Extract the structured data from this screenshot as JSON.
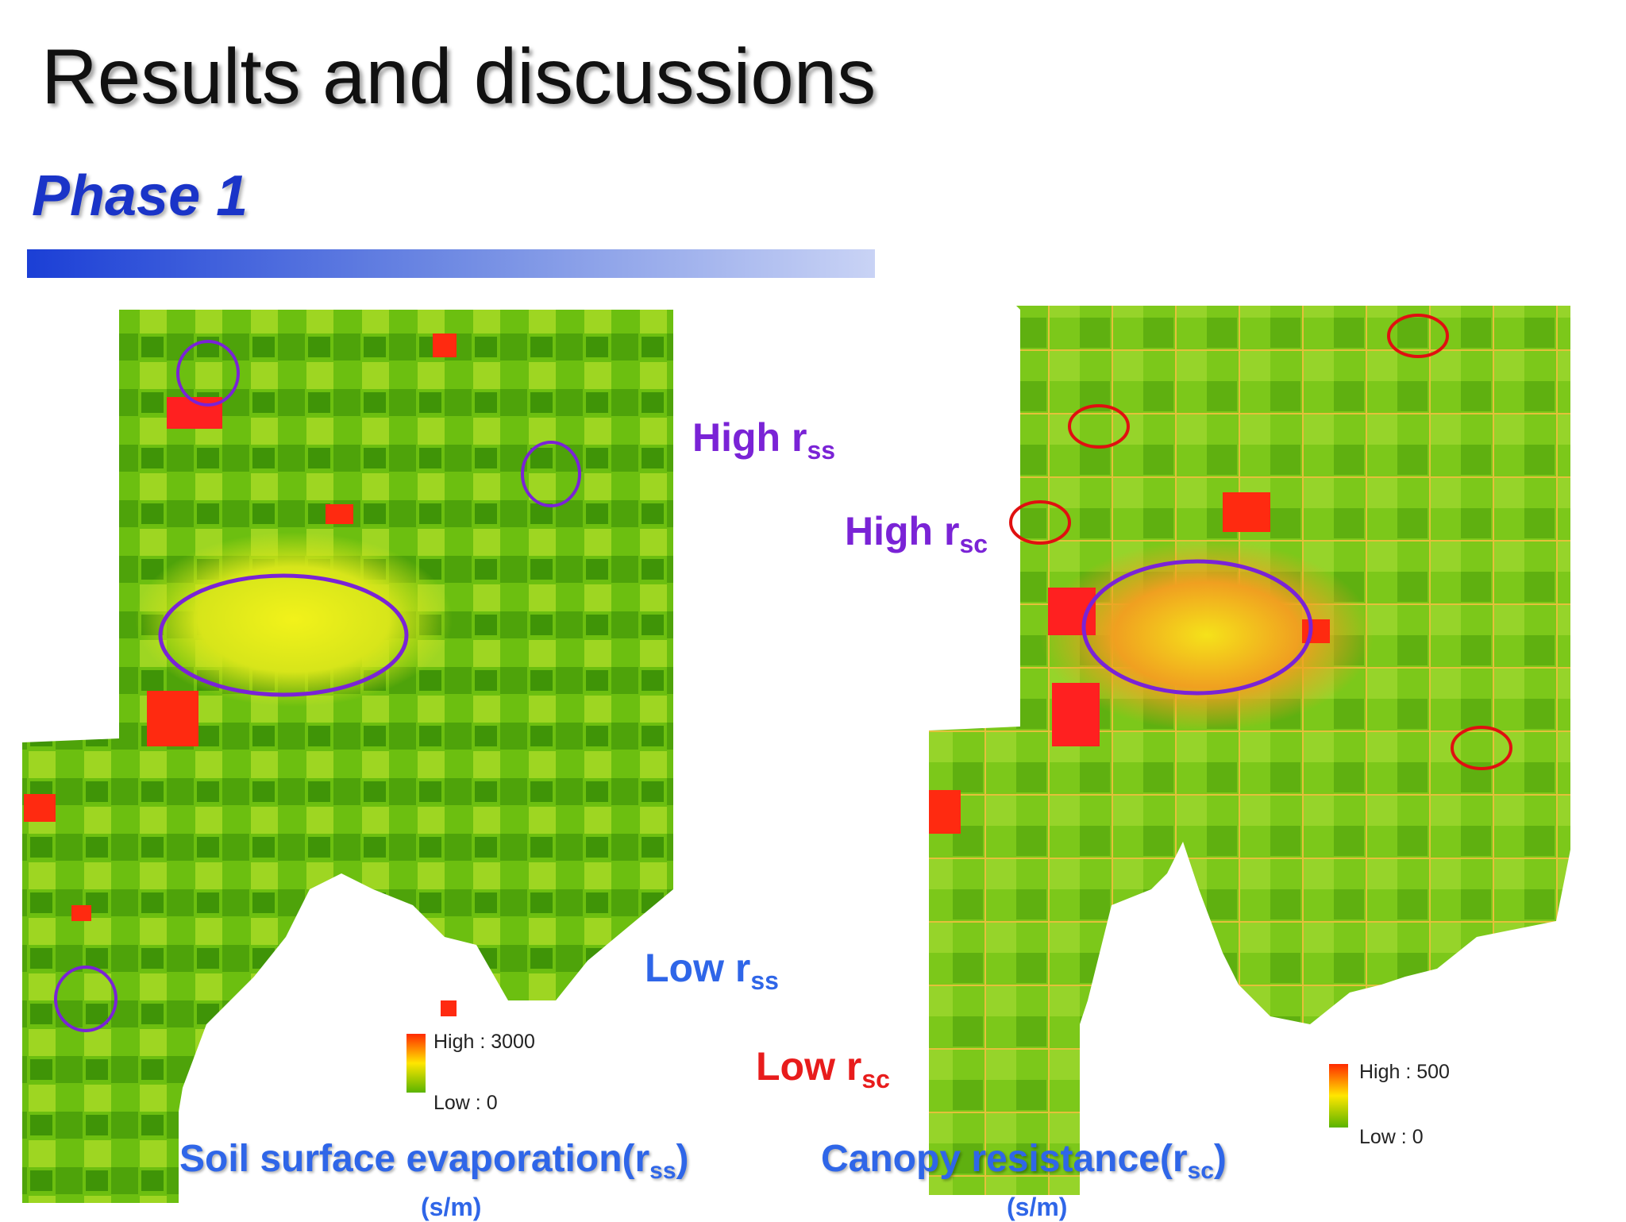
{
  "slide": {
    "title": "Results and discussions",
    "subtitle": "Phase 1"
  },
  "maps": [
    {
      "caption_main": "Soil surface evaporation(r",
      "caption_sub": "ss",
      "caption_end": ")",
      "unit": "(s/m)",
      "legend_high": "High : 3000",
      "legend_low": "Low : 0",
      "high_label_main": "High r",
      "high_label_sub": "ss",
      "low_label_main": "Low r",
      "low_label_sub": "ss"
    },
    {
      "caption_main": "Canopy resistance(r",
      "caption_sub": "sc",
      "caption_end": ")",
      "unit": "(s/m)",
      "legend_high": "High : 500",
      "legend_low": "Low : 0",
      "high_label_main": "High r",
      "high_label_sub": "sc",
      "low_label_main": "Low r",
      "low_label_sub": "sc"
    }
  ],
  "colors": {
    "map_high": "#ff1a1a",
    "map_mid": "#f0f000",
    "map_low": "#3c9a00",
    "high_marker": "#7a23d6",
    "low_marker_left": "#2f66e8",
    "low_marker_right": "#e81c1c",
    "accent_bar_start": "#1b3fd6"
  }
}
